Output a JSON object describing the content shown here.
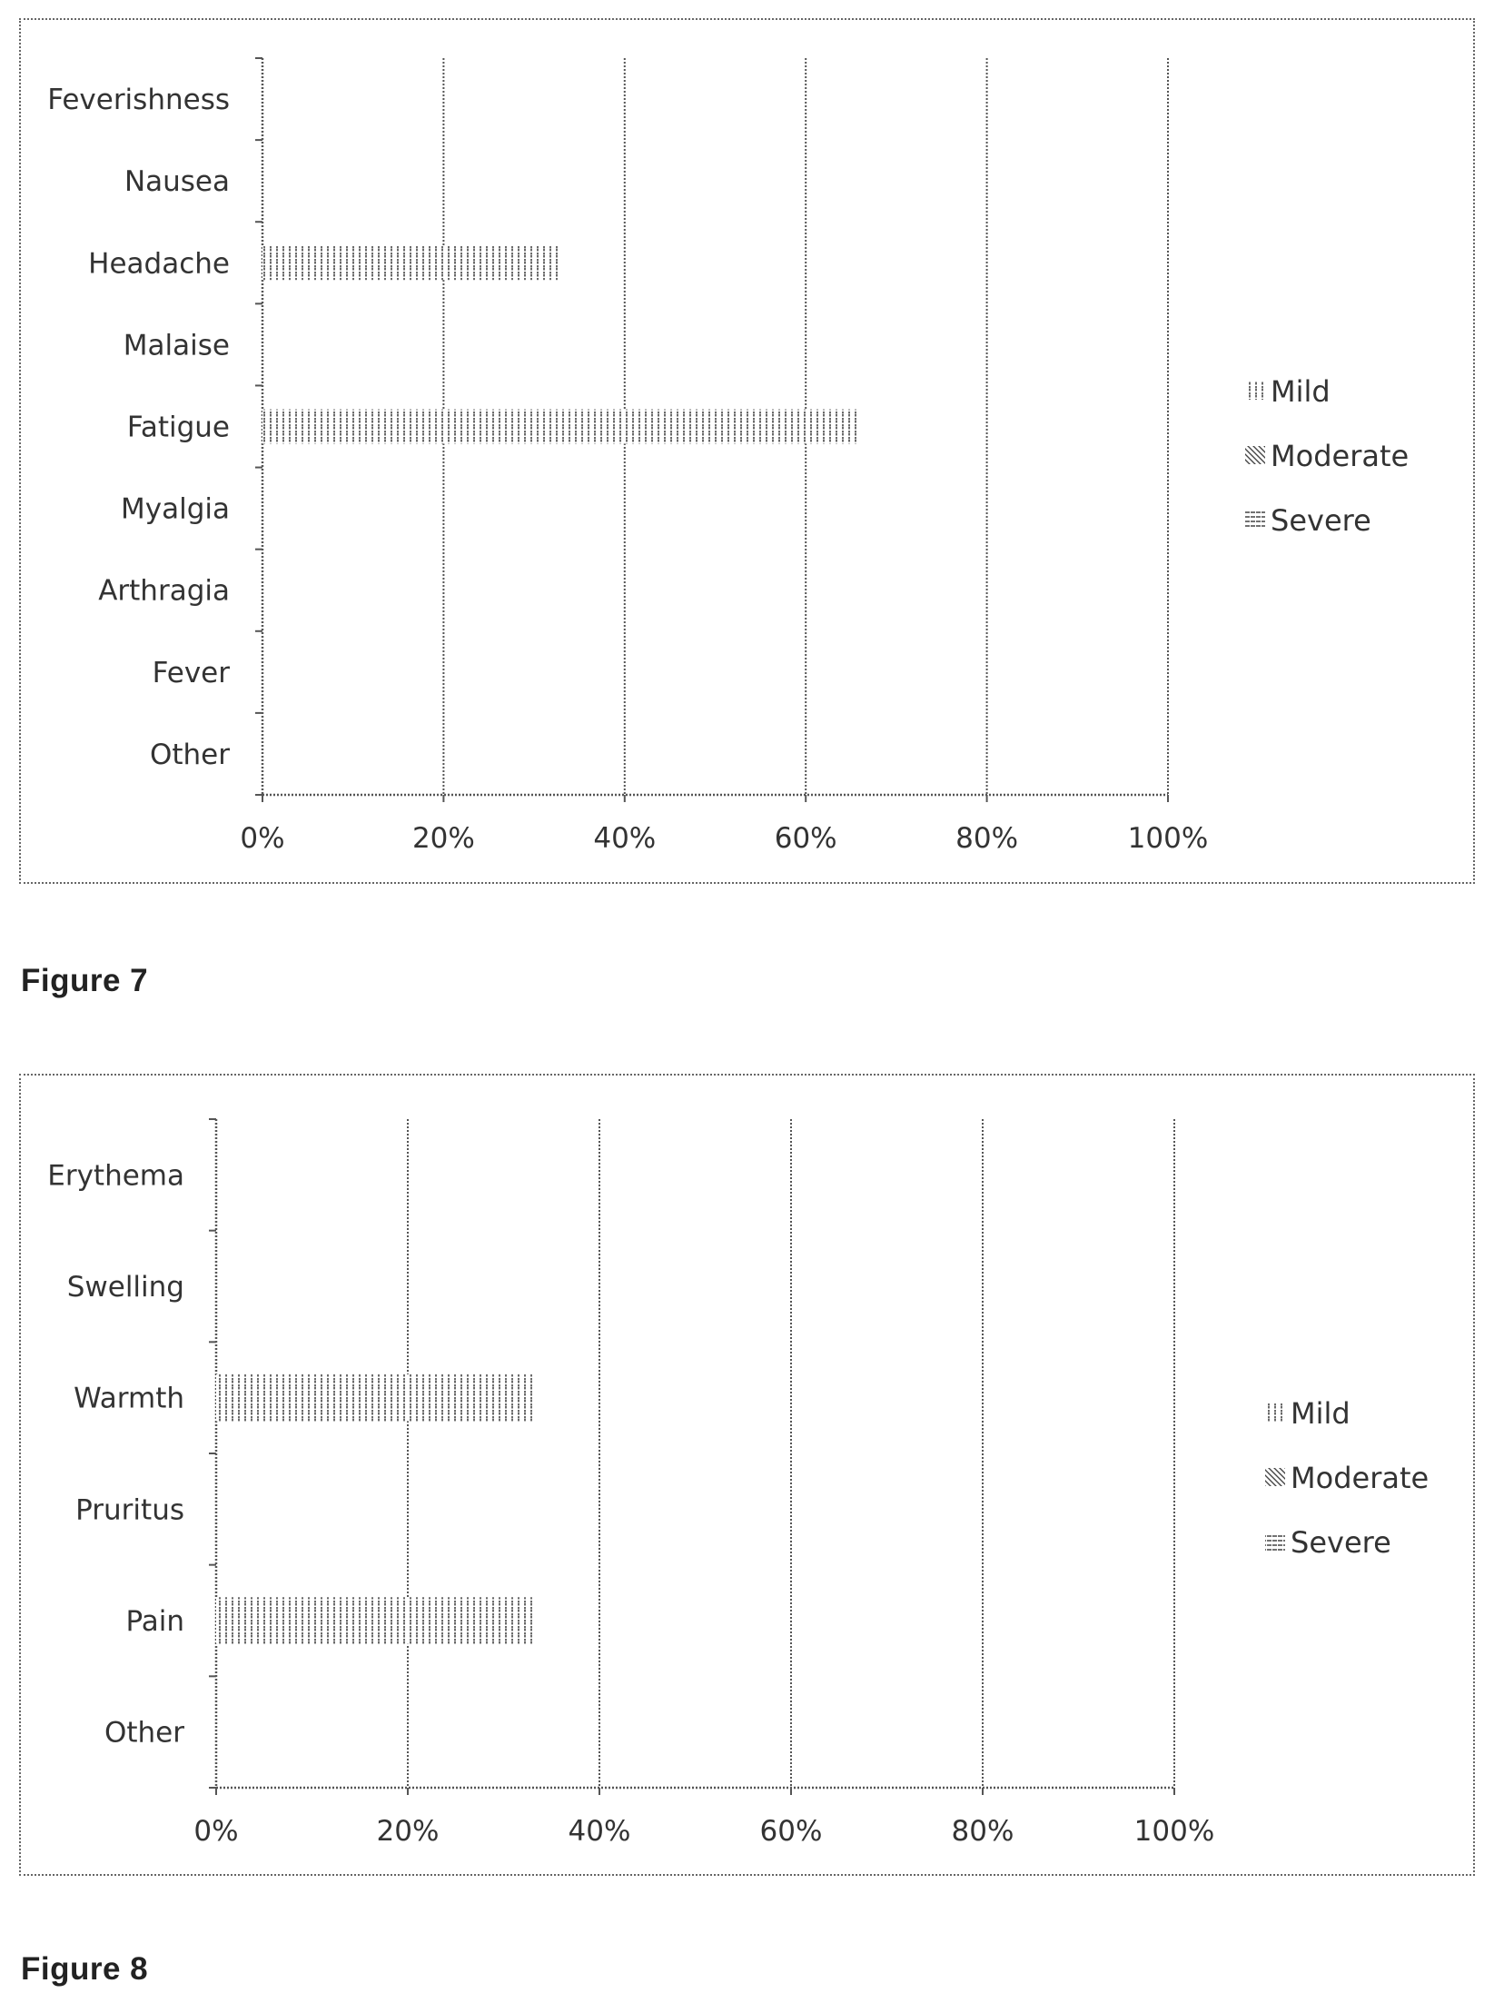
{
  "figures": [
    {
      "caption": "Figure 7",
      "chart_data": {
        "type": "bar",
        "orientation": "horizontal",
        "stacked": true,
        "categories": [
          "Feverishness",
          "Nausea",
          "Headache",
          "Malaise",
          "Fatigue",
          "Myalgia",
          "Arthragia",
          "Fever",
          "Other"
        ],
        "series": [
          {
            "name": "Mild",
            "pattern": "vertical-dotted",
            "values": [
              0,
              0,
              33,
              0,
              66,
              0,
              0,
              0,
              0
            ]
          },
          {
            "name": "Moderate",
            "pattern": "diagonal",
            "values": [
              0,
              0,
              0,
              0,
              0,
              0,
              0,
              0,
              0
            ]
          },
          {
            "name": "Severe",
            "pattern": "horizontal",
            "values": [
              0,
              0,
              0,
              0,
              0,
              0,
              0,
              0,
              0
            ]
          }
        ],
        "xticks": [
          "0%",
          "20%",
          "40%",
          "60%",
          "80%",
          "100%"
        ],
        "xlim": [
          0,
          100
        ],
        "grid": true,
        "legend_position": "right"
      }
    },
    {
      "caption": "Figure 8",
      "chart_data": {
        "type": "bar",
        "orientation": "horizontal",
        "stacked": true,
        "categories": [
          "Erythema",
          "Swelling",
          "Warmth",
          "Pruritus",
          "Pain",
          "Other"
        ],
        "series": [
          {
            "name": "Mild",
            "pattern": "vertical-dotted",
            "values": [
              0,
              0,
              33,
              0,
              33,
              0
            ]
          },
          {
            "name": "Moderate",
            "pattern": "diagonal",
            "values": [
              0,
              0,
              0,
              0,
              0,
              0
            ]
          },
          {
            "name": "Severe",
            "pattern": "horizontal",
            "values": [
              0,
              0,
              0,
              0,
              0,
              0
            ]
          }
        ],
        "xticks": [
          "0%",
          "20%",
          "40%",
          "60%",
          "80%",
          "100%"
        ],
        "xlim": [
          0,
          100
        ],
        "grid": true,
        "legend_position": "right"
      }
    }
  ]
}
